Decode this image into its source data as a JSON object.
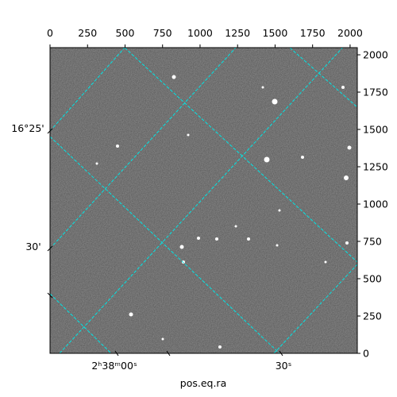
{
  "chart_data": {
    "type": "image",
    "xlabel": "pos.eq.ra",
    "xlim": [
      0,
      2048
    ],
    "ylim": [
      0,
      2048
    ],
    "xticks": [
      0,
      250,
      500,
      750,
      1000,
      1250,
      1500,
      1750,
      2000
    ],
    "yticks": [
      0,
      250,
      500,
      750,
      1000,
      1250,
      1500,
      1750,
      2000
    ],
    "ra_labels": [
      "2ʰ38ᵐ00ˢ",
      "30ˢ"
    ],
    "dec_labels": [
      "16°25'",
      "30'"
    ],
    "grid_color": "#00e5e5"
  }
}
